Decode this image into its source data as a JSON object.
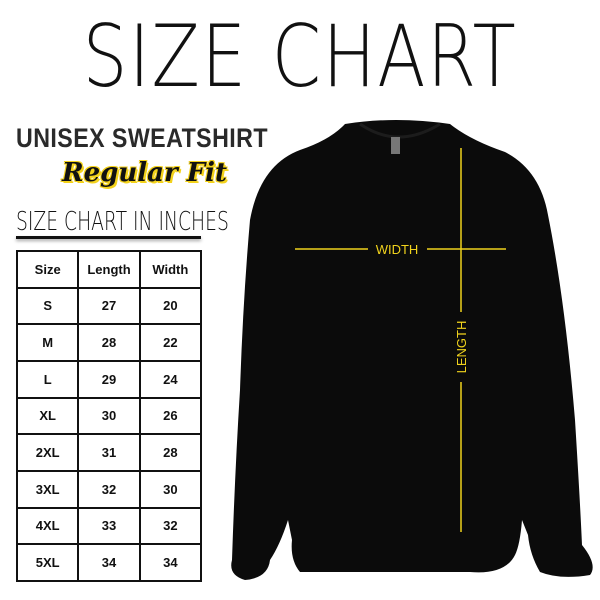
{
  "title": "SIZE CHART",
  "subtitle": "UNISEX SWEATSHIRT",
  "fit": "Regular Fit",
  "units_heading": "SIZE CHART IN INCHES",
  "table": {
    "headers": [
      "Size",
      "Length",
      "Width"
    ],
    "rows": [
      [
        "S",
        "27",
        "20"
      ],
      [
        "M",
        "28",
        "22"
      ],
      [
        "L",
        "29",
        "24"
      ],
      [
        "XL",
        "30",
        "26"
      ],
      [
        "2XL",
        "31",
        "28"
      ],
      [
        "3XL",
        "32",
        "30"
      ],
      [
        "4XL",
        "33",
        "32"
      ],
      [
        "5XL",
        "34",
        "34"
      ]
    ]
  },
  "diagram": {
    "width_label": "WIDTH",
    "length_label": "LENGTH",
    "garment_color": "#0b0b0b",
    "line_color": "#f0d21c"
  }
}
